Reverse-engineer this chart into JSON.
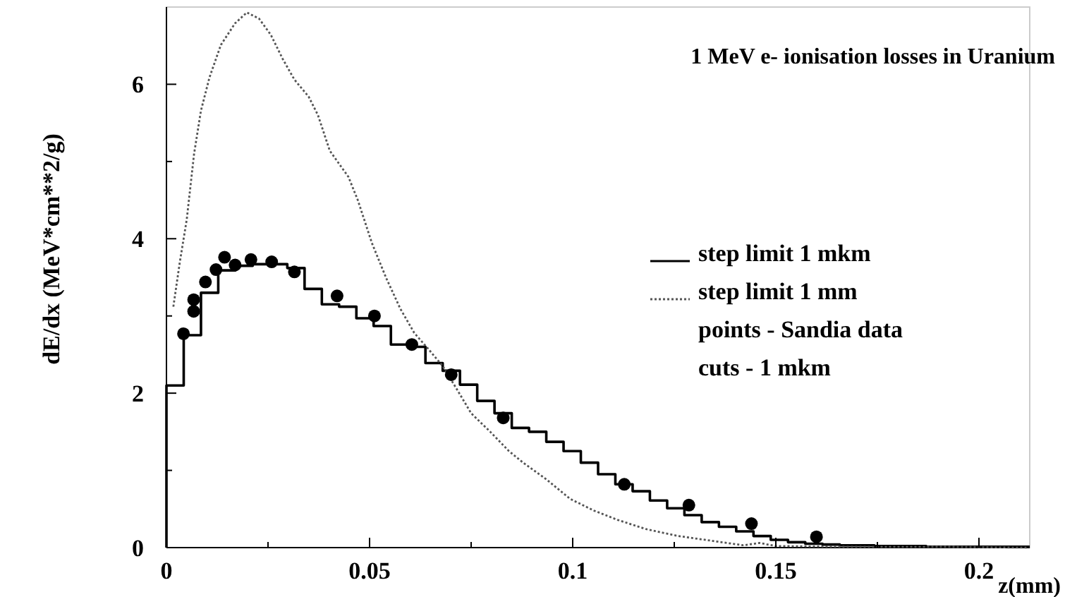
{
  "chart_data": {
    "type": "histogram",
    "title": "1 MeV e- ionisation losses in Uranium",
    "xlabel": "z(mm)",
    "ylabel": "dE/dx (MeV*cm**2/g)",
    "bins": [
      0,
      0.00425,
      0.0085,
      0.01275,
      0.017,
      0.02125,
      0.0255,
      0.02975,
      0.034,
      0.03825,
      0.0425,
      0.04675,
      0.051,
      0.05525,
      0.0595,
      0.06375,
      0.068,
      0.07225,
      0.0765,
      0.08075,
      0.085,
      0.08925,
      0.0935,
      0.09775,
      0.102,
      0.10625,
      0.1105,
      0.11475,
      0.119,
      0.12325,
      0.1275,
      0.13175,
      0.136,
      0.14025,
      0.1445,
      0.14875,
      0.153,
      0.15725,
      0.1615,
      0.16575,
      0.17,
      0.17425,
      0.1785,
      0.18275,
      0.187,
      0.19125,
      0.1955,
      0.19975,
      0.204,
      0.20825,
      0.2125
    ],
    "series": [
      {
        "type": "histogram",
        "name": "step limit 1 mkm",
        "color": "#000000",
        "values": [
          2.1,
          2.75,
          3.3,
          3.59,
          3.65,
          3.67,
          3.67,
          3.62,
          3.35,
          3.15,
          3.12,
          2.97,
          2.87,
          2.63,
          2.6,
          2.39,
          2.29,
          2.11,
          1.9,
          1.74,
          1.55,
          1.5,
          1.37,
          1.25,
          1.1,
          0.95,
          0.82,
          0.73,
          0.61,
          0.51,
          0.42,
          0.33,
          0.27,
          0.21,
          0.15,
          0.1,
          0.07,
          0.05,
          0.04,
          0.03,
          0.03,
          0.02,
          0.02,
          0.02,
          0.01,
          0.01,
          0.01,
          0.01,
          0.01,
          0.01
        ]
      },
      {
        "type": "line",
        "name": "step limit 1 mm",
        "color": "#555555",
        "line_style": "dotted",
        "x": [
          0.0017,
          0.0033,
          0.005,
          0.0068,
          0.0085,
          0.0106,
          0.0134,
          0.0169,
          0.0198,
          0.0228,
          0.0257,
          0.0286,
          0.0315,
          0.035,
          0.0373,
          0.0402,
          0.0448,
          0.0471,
          0.0506,
          0.0541,
          0.0576,
          0.061,
          0.0645,
          0.068,
          0.0715,
          0.075,
          0.0797,
          0.0843,
          0.0878,
          0.0936,
          0.0994,
          0.1052,
          0.111,
          0.118,
          0.126,
          0.134,
          0.142,
          0.146,
          0.15,
          0.169,
          0.192,
          0.212
        ],
        "values": [
          3.12,
          3.7,
          4.25,
          5.1,
          5.66,
          6.09,
          6.51,
          6.79,
          6.93,
          6.85,
          6.64,
          6.33,
          6.06,
          5.84,
          5.6,
          5.14,
          4.8,
          4.5,
          3.94,
          3.49,
          3.09,
          2.78,
          2.57,
          2.35,
          2.05,
          1.74,
          1.5,
          1.25,
          1.1,
          0.88,
          0.63,
          0.48,
          0.36,
          0.24,
          0.15,
          0.09,
          0.03,
          0.06,
          0.02,
          0.01,
          0.01,
          0
        ]
      },
      {
        "type": "scatter",
        "color": "#000000",
        "marker": "circle",
        "x": [
          0.0042,
          0.0067,
          0.0067,
          0.0096,
          0.0122,
          0.0143,
          0.0169,
          0.0208,
          0.0259,
          0.0315,
          0.042,
          0.0512,
          0.0604,
          0.0701,
          0.0829,
          0.1127,
          0.1286,
          0.144,
          0.16
        ],
        "values": [
          2.77,
          3.06,
          3.21,
          3.44,
          3.6,
          3.76,
          3.66,
          3.73,
          3.7,
          3.57,
          3.26,
          3.0,
          2.63,
          2.24,
          1.68,
          0.82,
          0.55,
          0.31,
          0.14
        ]
      }
    ],
    "annotations": [
      "points - Sandia data",
      "cuts - 1 mkm"
    ],
    "legend": "right",
    "xlim": [
      0,
      0.2125
    ],
    "ylim": [
      0,
      7
    ],
    "xticks": [
      0,
      {
        "value": 0.025,
        "label": null
      },
      {
        "value": 0.05,
        "label": "0.05"
      },
      {
        "value": 0.075,
        "label": null
      },
      {
        "value": 0.1,
        "label": "0.1"
      },
      {
        "value": 0.125,
        "label": null
      },
      {
        "value": 0.15,
        "label": "0.15"
      },
      {
        "value": 0.175,
        "label": null
      },
      {
        "value": 0.2,
        "label": "0.2"
      }
    ],
    "yticks": [
      0,
      {
        "value": 1,
        "label": null
      },
      2,
      {
        "value": 3,
        "label": null
      },
      4,
      {
        "value": 5,
        "label": null
      },
      6
    ]
  }
}
